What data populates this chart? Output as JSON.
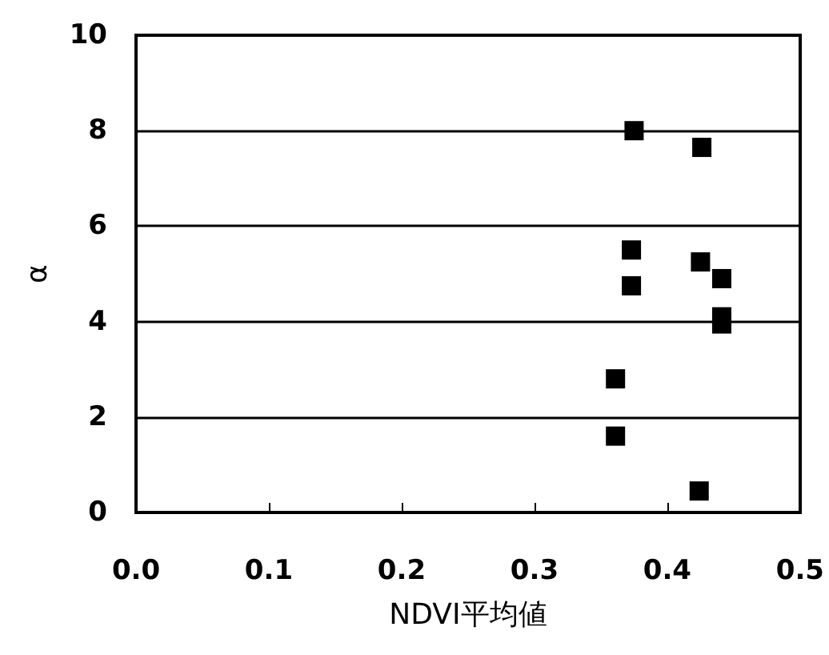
{
  "chart_data": {
    "type": "scatter",
    "xlabel": "NDVI平均値",
    "ylabel": "α",
    "x": [
      0.375,
      0.426,
      0.373,
      0.373,
      0.425,
      0.441,
      0.441,
      0.441,
      0.361,
      0.361,
      0.424
    ],
    "values": [
      8.0,
      7.65,
      5.5,
      4.75,
      5.25,
      4.9,
      4.1,
      3.95,
      2.8,
      1.6,
      0.45
    ],
    "color": "#000000",
    "marker": "square",
    "xlim": [
      0,
      0.5
    ],
    "xticks": [
      {
        "value": 0,
        "label": "0.0"
      },
      0.1,
      0.2,
      0.3,
      0.4,
      0.5
    ],
    "ylim": [
      0,
      10
    ],
    "yticks": [
      0,
      2,
      4,
      6,
      8,
      10
    ],
    "grid": "y"
  }
}
